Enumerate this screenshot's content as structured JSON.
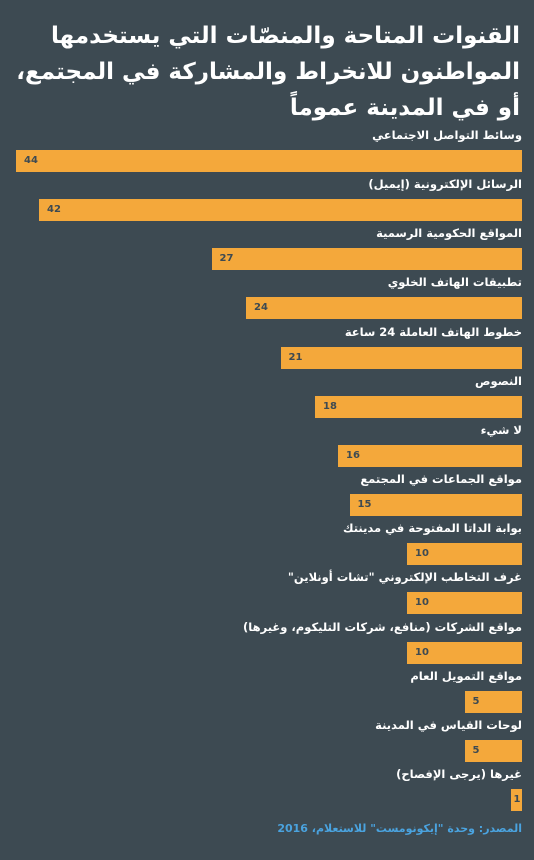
{
  "chart_data": {
    "type": "bar",
    "orientation": "horizontal",
    "title": "القنوات المتاحة والمنصّات التي يستخدمها المواطنون للانخراط والمشاركة في المجتمع، أو في المدينة عموماً",
    "categories": [
      "وسائط التواصل الاجتماعي",
      "الرسائل الإلكترونية (إيميل)",
      "المواقع الحكومية الرسمية",
      "تطبيقات الهاتف الخلوي",
      "خطوط الهاتف العاملة 24 ساعة",
      "النصوص",
      "لا شيء",
      "مواقع الجماعات في المجتمع",
      "بوابة الداتا المفتوحة في مدينتك",
      "غرف التخاطب الإلكتروني \"تشات أونلاين\"",
      "مواقع الشركات (منافع، شركات التليكوم، وغيرها)",
      "مواقع التمويل العام",
      "لوحات القياس في المدينة",
      "غيرها (يرجى الإفصاح)"
    ],
    "values": [
      44,
      42,
      27,
      24,
      21,
      18,
      16,
      15,
      10,
      10,
      10,
      5,
      5,
      1
    ],
    "color": "#f4a83b",
    "source": "المصدر: وحدة \"إيكونومست\" للاستعلام، 2016"
  }
}
